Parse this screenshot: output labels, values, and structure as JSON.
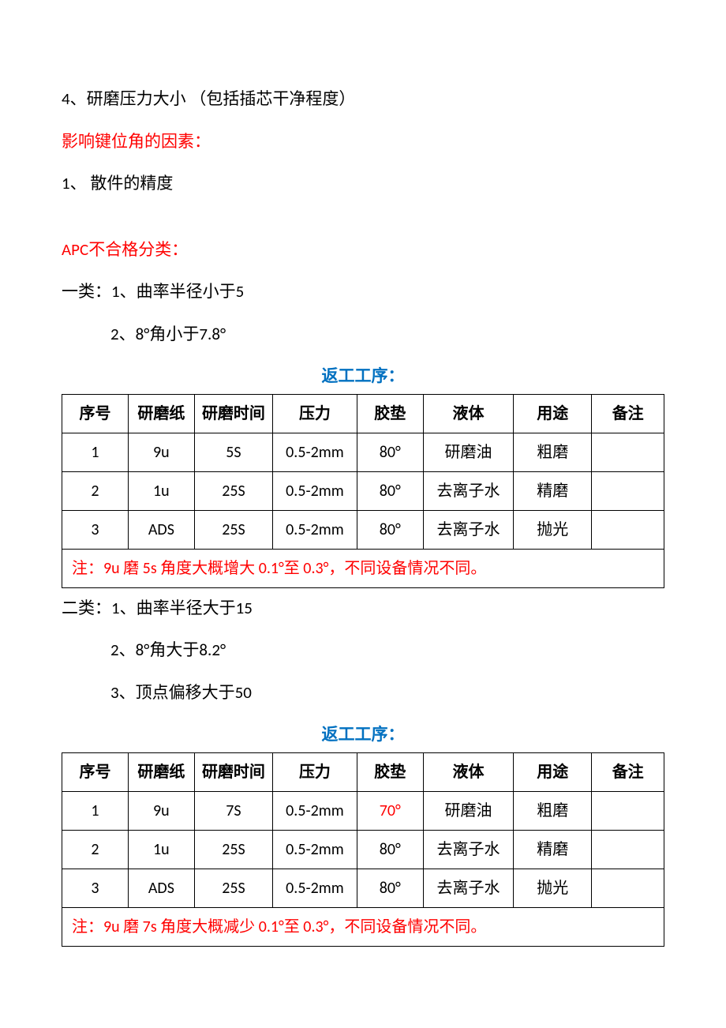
{
  "lines": {
    "l1": "4、研磨压力大小 （包括插芯干净程度）",
    "l2": "影响键位角的因素：",
    "l3": "1、  散件的精度",
    "l4": "APC不合格分类：",
    "l5": "一类：1、曲率半径小于5",
    "l6": "2、8°角小于7.8°",
    "l7": "返工工序：",
    "l8": "二类：1、曲率半径大于15",
    "l9": "2、8°角大于8.2°",
    "l10": "3、顶点偏移大于50",
    "l11": "返工工序："
  },
  "table1": {
    "headers": {
      "h1": "序号",
      "h2": "研磨纸",
      "h3": "研磨时间",
      "h4": "压力",
      "h5": "胶垫",
      "h6": "液体",
      "h7": "用途",
      "h8": "备注"
    },
    "r1": {
      "c1": "1",
      "c2": "9u",
      "c3": "5S",
      "c4": "0.5-2mm",
      "c5": "80°",
      "c6": "研磨油",
      "c7": "粗磨",
      "c8": ""
    },
    "r2": {
      "c1": "2",
      "c2": "1u",
      "c3": "25S",
      "c4": "0.5-2mm",
      "c5": "80°",
      "c6": "去离子水",
      "c7": "精磨",
      "c8": ""
    },
    "r3": {
      "c1": "3",
      "c2": "ADS",
      "c3": "25S",
      "c4": "0.5-2mm",
      "c5": "80°",
      "c6": "去离子水",
      "c7": "抛光",
      "c8": ""
    },
    "note": "注：9u 磨 5s 角度大概增大 0.1°至 0.3°，不同设备情况不同。"
  },
  "table2": {
    "headers": {
      "h1": "序号",
      "h2": "研磨纸",
      "h3": "研磨时间",
      "h4": "压力",
      "h5": "胶垫",
      "h6": "液体",
      "h7": "用途",
      "h8": "备注"
    },
    "r1": {
      "c1": "1",
      "c2": "9u",
      "c3": "7S",
      "c4": "0.5-2mm",
      "c5": "70°",
      "c6": "研磨油",
      "c7": "粗磨",
      "c8": ""
    },
    "r2": {
      "c1": "2",
      "c2": "1u",
      "c3": "25S",
      "c4": "0.5-2mm",
      "c5": "80°",
      "c6": "去离子水",
      "c7": "精磨",
      "c8": ""
    },
    "r3": {
      "c1": "3",
      "c2": "ADS",
      "c3": "25S",
      "c4": "0.5-2mm",
      "c5": "80°",
      "c6": "去离子水",
      "c7": "抛光",
      "c8": ""
    },
    "note": "注：9u 磨 7s 角度大概减少 0.1°至 0.3°，不同设备情况不同。"
  },
  "colors": {
    "text": "#000000",
    "red": "#ff0000",
    "blue": "#0070c0",
    "border": "#000000",
    "background": "#ffffff"
  }
}
